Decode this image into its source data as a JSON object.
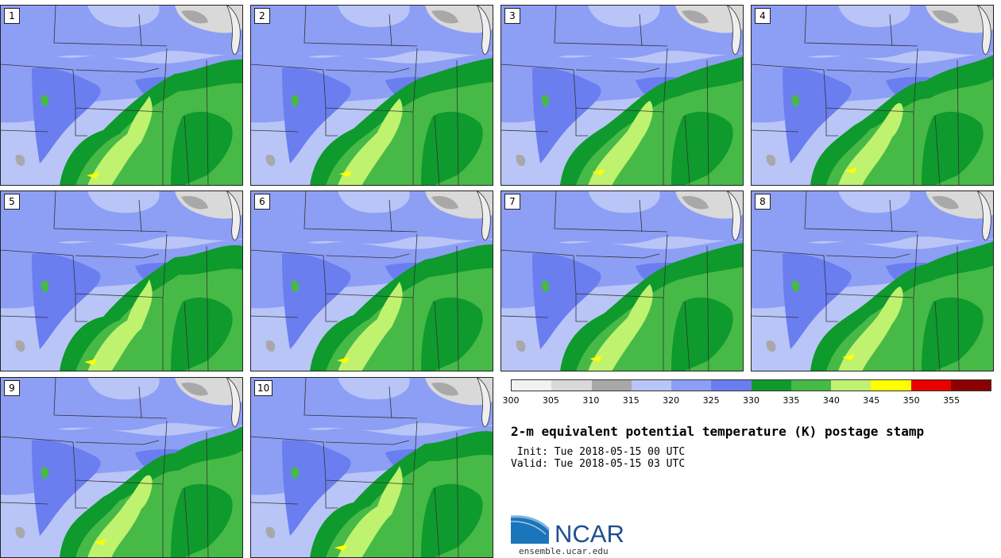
{
  "figure": {
    "title": "2-m equivalent potential temperature (K) postage stamp",
    "init": " Init: Tue 2018-05-15 00 UTC",
    "valid": "Valid: Tue 2018-05-15 03 UTC"
  },
  "panels": [
    {
      "label": "1"
    },
    {
      "label": "2"
    },
    {
      "label": "3"
    },
    {
      "label": "4"
    },
    {
      "label": "5"
    },
    {
      "label": "6"
    },
    {
      "label": "7"
    },
    {
      "label": "8"
    },
    {
      "label": "9"
    },
    {
      "label": "10"
    }
  ],
  "colorbar": {
    "ticks": [
      "300",
      "305",
      "310",
      "315",
      "320",
      "325",
      "330",
      "335",
      "340",
      "345",
      "350",
      "355"
    ],
    "colors": [
      "#f2f2f2",
      "#d9d9d9",
      "#a8a8a8",
      "#b9c5f7",
      "#8d9ef5",
      "#6a7ef0",
      "#0e9a2c",
      "#47b947",
      "#bff26f",
      "#ffff00",
      "#e80000",
      "#8b0000"
    ]
  },
  "branding": {
    "logo_text": "NCAR",
    "url": "ensemble.ucar.edu"
  }
}
